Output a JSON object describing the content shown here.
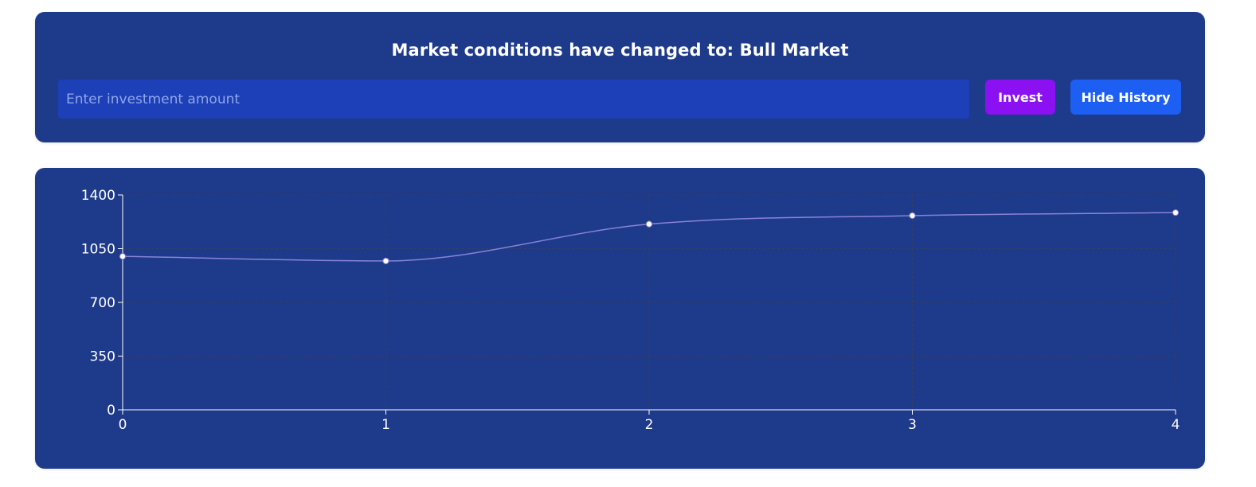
{
  "banner": {
    "title": "Market conditions have changed to: Bull Market"
  },
  "investment": {
    "placeholder": "Enter investment amount",
    "value": ""
  },
  "buttons": {
    "invest_label": "Invest",
    "history_label": "Hide History"
  },
  "colors": {
    "card_bg": "#1e3a8a",
    "input_bg": "#1d40b8",
    "invest_button": "#8b10f2",
    "history_button": "#1d5ff2",
    "line": "#8884d8",
    "grid": "#3a3f5c",
    "axis": "#ffffff"
  },
  "chart_data": {
    "type": "line",
    "x": [
      0,
      1,
      2,
      3,
      4
    ],
    "series": [
      {
        "values": [
          1000,
          970,
          1210,
          1265,
          1285
        ]
      }
    ],
    "xlim": [
      0,
      4
    ],
    "ylim": [
      0,
      1400
    ],
    "yticks": [
      0,
      350,
      700,
      1050,
      1400
    ],
    "xticks": [
      0,
      1,
      2,
      3,
      4
    ],
    "grid": true,
    "curve": "monotone",
    "markers": true
  }
}
